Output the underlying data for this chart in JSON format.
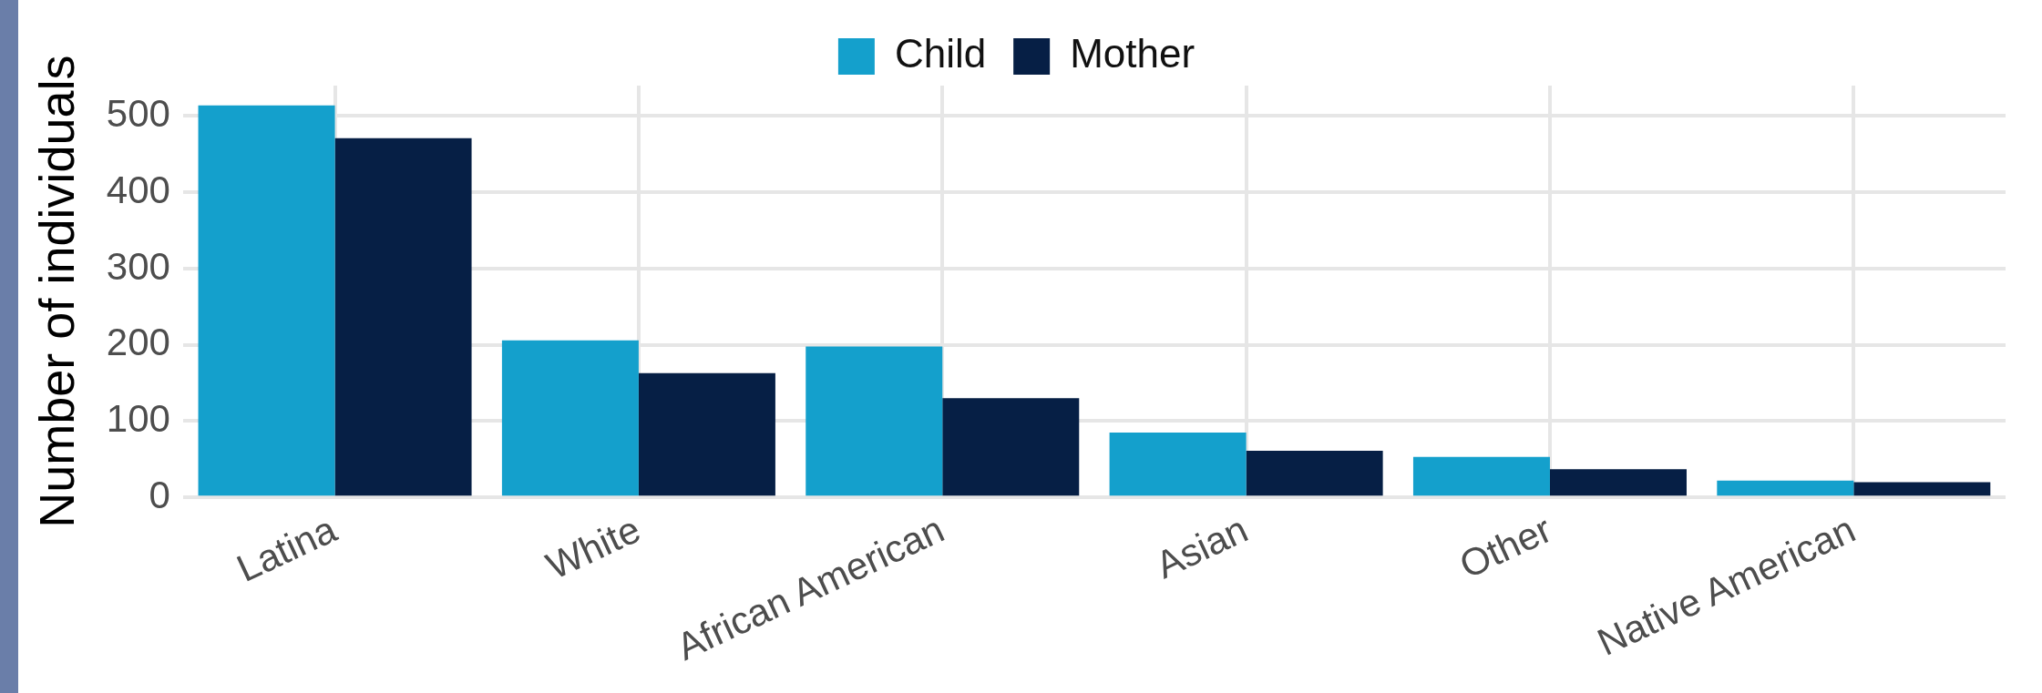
{
  "chart_data": {
    "type": "bar",
    "ylabel": "Number of individuals",
    "categories": [
      "Latina",
      "White",
      "African American",
      "Asian",
      "Other",
      "Native American"
    ],
    "series": [
      {
        "name": "Child",
        "color": "#14a0cc",
        "values": [
          514,
          206,
          198,
          85,
          53,
          22
        ]
      },
      {
        "name": "Mother",
        "color": "#061f45",
        "values": [
          471,
          163,
          130,
          61,
          37,
          20
        ]
      }
    ],
    "ylim": [
      0,
      540
    ],
    "yticks": [
      0,
      100,
      200,
      300,
      400,
      500
    ],
    "grid": true,
    "legend": "top"
  }
}
